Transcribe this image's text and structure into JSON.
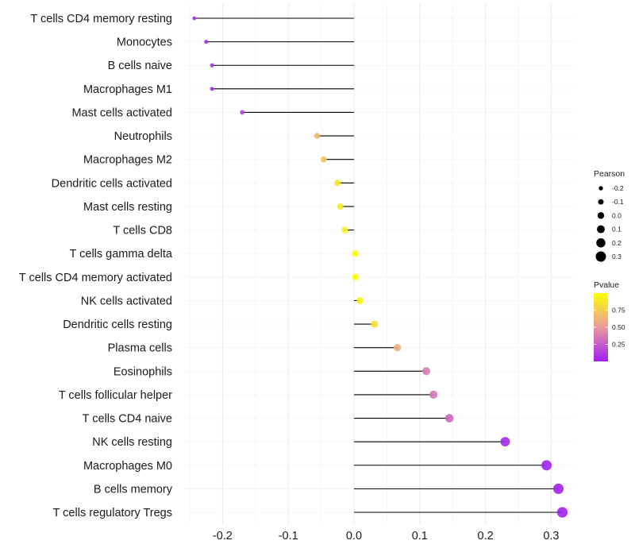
{
  "chart_data": {
    "type": "lollipop",
    "title": "",
    "xlabel": "",
    "ylabel": "",
    "xlim": [
      -0.26,
      0.335
    ],
    "x_ticks": [
      -0.2,
      -0.1,
      0.0,
      0.1,
      0.2,
      0.3
    ],
    "x_tick_labels": [
      "-0.2",
      "-0.1",
      "0.0",
      "0.1",
      "0.2",
      "0.3"
    ],
    "grid": true,
    "categories": [
      "T cells CD4 memory resting",
      "Monocytes",
      "B cells naive",
      "Macrophages M1",
      "Mast cells activated",
      "Neutrophils",
      "Macrophages M2",
      "Dendritic cells activated",
      "Mast cells resting",
      "T cells CD8",
      "T cells gamma delta",
      "T cells CD4 memory activated",
      "NK cells activated",
      "Dendritic cells resting",
      "Plasma cells",
      "Eosinophils",
      "T cells follicular helper",
      "T cells CD4 naive",
      "NK cells resting",
      "Macrophages M0",
      "B cells memory",
      "T cells regulatory  Tregs "
    ],
    "series": [
      {
        "name": "Pearson",
        "values": [
          -0.243,
          -0.225,
          -0.216,
          -0.216,
          -0.17,
          -0.056,
          -0.046,
          -0.025,
          -0.021,
          -0.014,
          0.002,
          0.002,
          0.009,
          0.031,
          0.066,
          0.11,
          0.121,
          0.145,
          0.23,
          0.293,
          0.311,
          0.317
        ]
      },
      {
        "name": "Pvalue",
        "values": [
          0.02,
          0.05,
          0.06,
          0.06,
          0.15,
          0.65,
          0.7,
          0.88,
          0.9,
          0.93,
          0.99,
          0.99,
          0.95,
          0.85,
          0.6,
          0.38,
          0.35,
          0.3,
          0.04,
          0.01,
          0.01,
          0.01
        ]
      }
    ],
    "legend": {
      "size": {
        "title": "Pearson",
        "values": [
          -0.2,
          -0.1,
          0.0,
          0.1,
          0.2,
          0.3
        ],
        "labels": [
          "-0.2",
          "-0.1",
          "0.0",
          "0.1",
          "0.2",
          "0.3"
        ]
      },
      "color": {
        "title": "Pvalue",
        "range": [
          0,
          1
        ],
        "ticks": [
          0.25,
          0.5,
          0.75
        ],
        "labels": [
          "0.25",
          "0.50",
          "0.75"
        ],
        "low_color": "#A020F0",
        "mid_color": "#E89AA0",
        "high_color": "#FFFF00"
      },
      "placement": "right"
    }
  }
}
